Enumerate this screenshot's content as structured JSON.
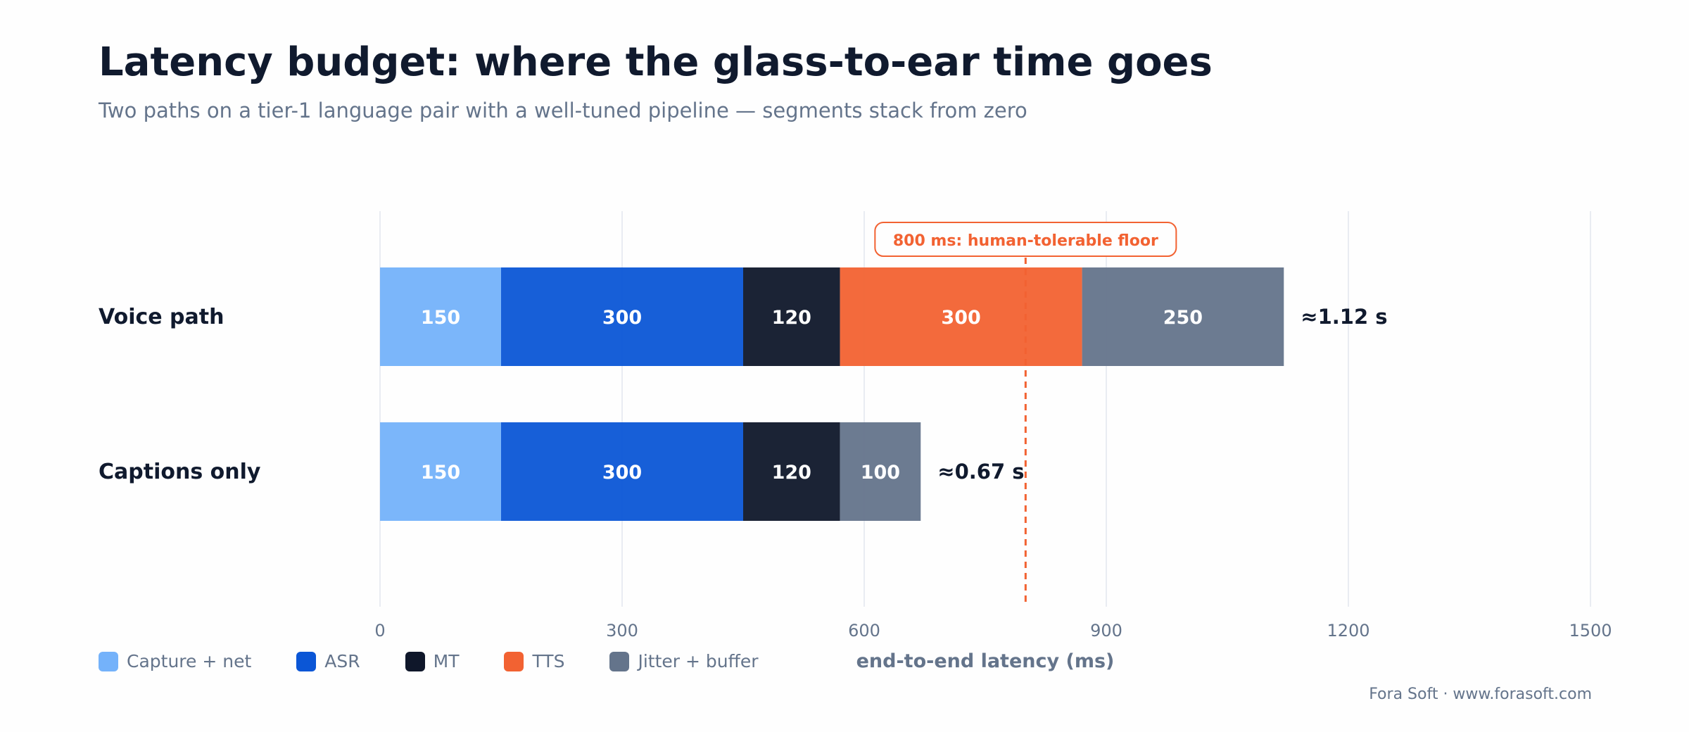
{
  "title": "Latency budget: where the glass-to-ear time goes",
  "subtitle": "Two paths on a tier-1 language pair with a well-tuned pipeline — segments stack from zero",
  "footer": "Fora Soft · www.forasoft.com",
  "colors": {
    "capture": "#74b2fa",
    "asr": "#0b56d6",
    "mt": "#0f172a",
    "tts": "#f26232",
    "jitter": "#64748b",
    "reference": "#f26232",
    "text_dark": "#101a2e",
    "text_muted": "#64748b",
    "grid": "#e2e5ee"
  },
  "legend": [
    {
      "label": "Capture + net",
      "color": "#74b2fa"
    },
    {
      "label": "ASR",
      "color": "#0b56d6"
    },
    {
      "label": "MT",
      "color": "#0f172a"
    },
    {
      "label": "TTS",
      "color": "#f26232"
    },
    {
      "label": "Jitter + buffer",
      "color": "#64748b"
    }
  ],
  "chart_data": {
    "type": "bar",
    "orientation": "horizontal",
    "stacked": true,
    "categories": [
      "Voice path",
      "Captions only"
    ],
    "series": [
      {
        "name": "Capture + net",
        "values": [
          150,
          150
        ],
        "color": "#74b2fa"
      },
      {
        "name": "ASR",
        "values": [
          300,
          300
        ],
        "color": "#0b56d6"
      },
      {
        "name": "MT",
        "values": [
          120,
          120
        ],
        "color": "#0f172a"
      },
      {
        "name": "TTS",
        "values": [
          300,
          0
        ],
        "color": "#f26232"
      },
      {
        "name": "Jitter + buffer",
        "values": [
          250,
          100
        ],
        "color": "#64748b"
      }
    ],
    "totals_labels": [
      "≈1.12 s",
      "≈0.67 s"
    ],
    "xlabel": "end-to-end latency (ms)",
    "xlim": [
      0,
      1500
    ],
    "xticks": [
      0,
      300,
      600,
      900,
      1200,
      1500
    ],
    "grid": "vertical",
    "reference_line": {
      "value": 800,
      "label": "800 ms: human-tolerable floor"
    }
  }
}
